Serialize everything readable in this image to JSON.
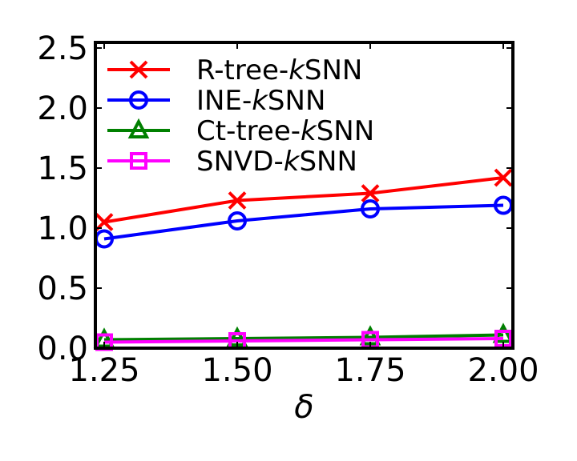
{
  "chart_data": {
    "type": "line",
    "title": "",
    "xlabel": "δ",
    "ylabel": "",
    "x": [
      1.25,
      1.5,
      1.75,
      2.0
    ],
    "x_tick_labels": [
      "1.25",
      "1.50",
      "1.75",
      "2.00"
    ],
    "xlim": [
      1.25,
      2.0
    ],
    "ylim": [
      0.0,
      2.5
    ],
    "y_ticks": [
      0.0,
      0.5,
      1.0,
      1.5,
      2.0,
      2.5
    ],
    "y_tick_labels": [
      "0.0",
      "0.5",
      "1.0",
      "1.5",
      "2.0",
      "2.5"
    ],
    "grid": false,
    "legend_position": "top-left",
    "series": [
      {
        "name_prefix": "R-tree-",
        "name_italic": "k",
        "name_suffix": "SNN",
        "color": "#ff0000",
        "marker": "x",
        "values": [
          1.05,
          1.23,
          1.29,
          1.42
        ]
      },
      {
        "name_prefix": "INE-",
        "name_italic": "k",
        "name_suffix": "SNN",
        "color": "#0000ff",
        "marker": "circle",
        "values": [
          0.91,
          1.06,
          1.16,
          1.19
        ]
      },
      {
        "name_prefix": "Ct-tree-",
        "name_italic": "k",
        "name_suffix": "SNN",
        "color": "#008000",
        "marker": "triangle",
        "values": [
          0.07,
          0.08,
          0.09,
          0.11
        ]
      },
      {
        "name_prefix": "SNVD-",
        "name_italic": "k",
        "name_suffix": "SNN",
        "color": "#ff00ff",
        "marker": "square",
        "values": [
          0.05,
          0.06,
          0.07,
          0.08
        ]
      }
    ]
  }
}
